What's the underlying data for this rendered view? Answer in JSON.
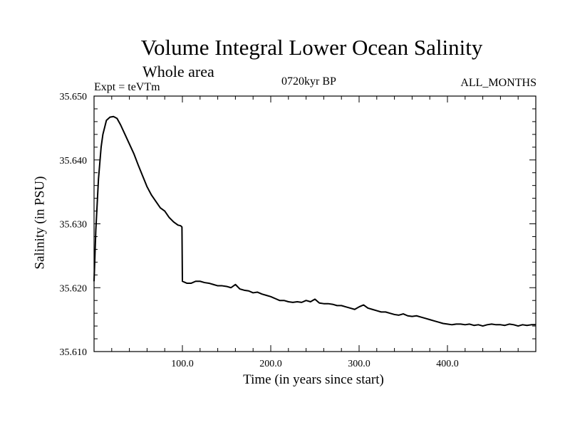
{
  "chart_data": {
    "type": "line",
    "title": "Volume Integral Lower Ocean Salinity",
    "subtitle": "Whole area",
    "annotations": {
      "left": "Expt = teVTm",
      "center": "0720kyr BP",
      "right": "ALL_MONTHS"
    },
    "xlabel": "Time (in years since start)",
    "ylabel": "Salinity (in PSU)",
    "xlim": [
      0,
      500
    ],
    "ylim": [
      35.61,
      35.65
    ],
    "xticks": [
      {
        "value": 100,
        "label": "100.0"
      },
      {
        "value": 200,
        "label": "200.0"
      },
      {
        "value": 300,
        "label": "300.0"
      },
      {
        "value": 400,
        "label": "400.0"
      }
    ],
    "yticks": [
      {
        "value": 35.61,
        "label": "35.610"
      },
      {
        "value": 35.62,
        "label": "35.620"
      },
      {
        "value": 35.63,
        "label": "35.630"
      },
      {
        "value": 35.64,
        "label": "35.640"
      },
      {
        "value": 35.65,
        "label": "35.650"
      }
    ],
    "grid": false,
    "legend": "none",
    "line_color": "#000000",
    "series": [
      {
        "x": [
          0,
          2,
          5,
          8,
          10,
          14,
          18,
          22,
          26,
          30,
          35,
          40,
          45,
          50,
          55,
          60,
          65,
          70,
          75,
          80,
          85,
          90,
          95,
          98,
          99.5,
          100,
          105,
          110,
          115,
          120,
          125,
          130,
          135,
          140,
          145,
          150,
          155,
          160,
          165,
          170,
          175,
          180,
          185,
          190,
          195,
          200,
          205,
          210,
          215,
          220,
          225,
          230,
          235,
          240,
          245,
          250,
          255,
          260,
          265,
          270,
          275,
          280,
          285,
          290,
          295,
          300,
          305,
          310,
          315,
          320,
          325,
          330,
          335,
          340,
          345,
          350,
          355,
          360,
          365,
          370,
          375,
          380,
          385,
          390,
          395,
          400,
          405,
          410,
          415,
          420,
          425,
          430,
          435,
          440,
          445,
          450,
          455,
          460,
          465,
          470,
          475,
          480,
          485,
          490,
          495,
          500
        ],
        "y": [
          35.621,
          35.629,
          35.637,
          35.642,
          35.644,
          35.6462,
          35.6467,
          35.6468,
          35.6465,
          35.6455,
          35.644,
          35.6425,
          35.641,
          35.6392,
          35.6375,
          35.6358,
          35.6345,
          35.6335,
          35.6325,
          35.632,
          35.631,
          35.6303,
          35.6298,
          35.6297,
          35.6295,
          35.621,
          35.6207,
          35.6207,
          35.621,
          35.621,
          35.6208,
          35.6207,
          35.6205,
          35.6203,
          35.6203,
          35.6202,
          35.62,
          35.6205,
          35.6198,
          35.6196,
          35.6195,
          35.6192,
          35.6193,
          35.619,
          35.6188,
          35.6186,
          35.6183,
          35.618,
          35.618,
          35.6178,
          35.6177,
          35.6178,
          35.6177,
          35.618,
          35.6178,
          35.6182,
          35.6176,
          35.6175,
          35.6175,
          35.6174,
          35.6172,
          35.6172,
          35.617,
          35.6168,
          35.6166,
          35.617,
          35.6173,
          35.6168,
          35.6166,
          35.6164,
          35.6162,
          35.6162,
          35.616,
          35.6158,
          35.6157,
          35.6159,
          35.6156,
          35.6155,
          35.6156,
          35.6154,
          35.6152,
          35.615,
          35.6148,
          35.6146,
          35.6144,
          35.6143,
          35.6142,
          35.6143,
          35.6143,
          35.6142,
          35.6143,
          35.6141,
          35.6142,
          35.614,
          35.6142,
          35.6143,
          35.6142,
          35.6142,
          35.6141,
          35.6143,
          35.6142,
          35.614,
          35.6142,
          35.6141,
          35.6142,
          35.6142
        ]
      }
    ]
  }
}
